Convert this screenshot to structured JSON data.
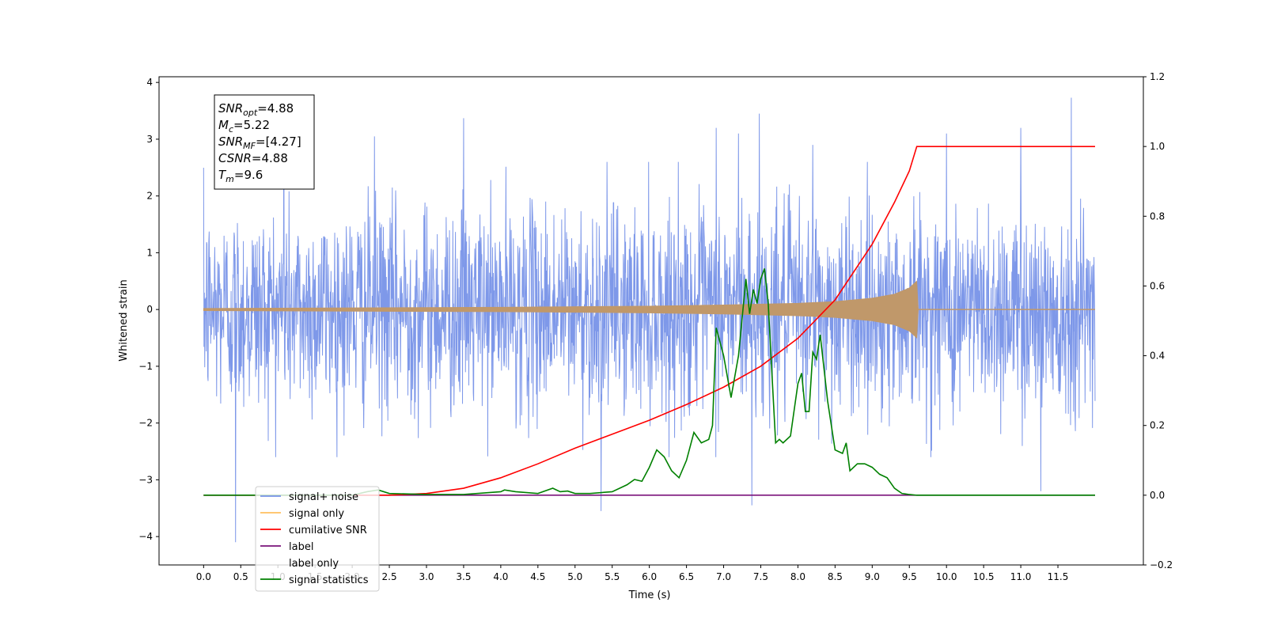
{
  "chart_data": {
    "type": "line",
    "xlabel": "Time (s)",
    "ylabel": "Whitened strain",
    "xlim": [
      -0.6,
      12.65
    ],
    "ylim_left": [
      -4.5,
      4.1
    ],
    "ylim_right": [
      -0.2,
      1.2
    ],
    "x_ticks": [
      "0.0",
      "0.5",
      "1.0",
      "1.5",
      "2.0",
      "2.5",
      "3.0",
      "3.5",
      "4.0",
      "4.5",
      "5.0",
      "5.5",
      "6.0",
      "6.5",
      "7.0",
      "7.5",
      "8.0",
      "8.5",
      "9.0",
      "9.5",
      "10.0",
      "10.5",
      "11.0",
      "11.5"
    ],
    "y_ticks_left": [
      -4,
      -3,
      -2,
      -1,
      0,
      1,
      2,
      3,
      4
    ],
    "y_ticks_right": [
      "−0.2",
      "0.0",
      "0.2",
      "0.4",
      "0.6",
      "0.8",
      "1.0",
      "1.2"
    ],
    "signal_duration": [
      0,
      12.0
    ],
    "merger_time": 9.6,
    "series": [
      {
        "name": "signal+ noise",
        "color": "#7792e8",
        "axis": "left",
        "description_values": {
          "mean": 0,
          "std_approx": 0.9,
          "peaks": [
            [
              0.43,
              -4.1
            ],
            [
              1.08,
              3.25
            ],
            [
              2.3,
              3.05
            ],
            [
              3.5,
              3.37
            ],
            [
              5.35,
              -3.55
            ],
            [
              6.9,
              3.2
            ],
            [
              7.2,
              3.1
            ],
            [
              7.48,
              3.45
            ],
            [
              7.38,
              -3.45
            ],
            [
              8.2,
              2.9
            ],
            [
              10.0,
              3.1
            ],
            [
              11.0,
              3.2
            ],
            [
              11.27,
              -3.2
            ],
            [
              11.68,
              3.73
            ]
          ]
        }
      },
      {
        "name": "signal only",
        "color": "#c0986a",
        "axis": "left",
        "envelope": [
          [
            0,
            0.02
          ],
          [
            2,
            0.03
          ],
          [
            4,
            0.04
          ],
          [
            6,
            0.06
          ],
          [
            7,
            0.08
          ],
          [
            8,
            0.11
          ],
          [
            8.5,
            0.14
          ],
          [
            9.0,
            0.2
          ],
          [
            9.3,
            0.27
          ],
          [
            9.5,
            0.38
          ],
          [
            9.6,
            0.5
          ],
          [
            9.62,
            0
          ]
        ]
      },
      {
        "name": "cumilative SNR",
        "color": "#ff0000",
        "axis": "right",
        "x": [
          0,
          2.5,
          3.0,
          3.5,
          4.0,
          4.5,
          5.0,
          5.5,
          6.0,
          6.5,
          7.0,
          7.5,
          8.0,
          8.5,
          9.0,
          9.3,
          9.5,
          9.6,
          10.0,
          11.0,
          12.0
        ],
        "y": [
          0.0,
          0.0,
          0.005,
          0.02,
          0.05,
          0.09,
          0.135,
          0.175,
          0.215,
          0.26,
          0.31,
          0.37,
          0.45,
          0.56,
          0.72,
          0.84,
          0.93,
          1.0,
          1.0,
          1.0,
          1.0
        ]
      },
      {
        "name": "label",
        "color": "#7a137a",
        "axis": "right",
        "x": [
          0,
          12.0
        ],
        "y": [
          0.0,
          0.0
        ]
      },
      {
        "name": "label only",
        "color": "#dddddd",
        "axis": "right",
        "x": [],
        "y": []
      },
      {
        "name": "signal statistics",
        "color": "#008000",
        "axis": "right",
        "x": [
          0,
          2.0,
          2.2,
          2.35,
          2.5,
          3.0,
          3.5,
          4.0,
          4.05,
          4.2,
          4.5,
          4.7,
          4.75,
          4.8,
          4.9,
          5.0,
          5.2,
          5.5,
          5.7,
          5.8,
          5.9,
          6.0,
          6.1,
          6.2,
          6.3,
          6.4,
          6.5,
          6.6,
          6.7,
          6.8,
          6.85,
          6.9,
          7.0,
          7.1,
          7.2,
          7.3,
          7.35,
          7.4,
          7.45,
          7.5,
          7.55,
          7.6,
          7.7,
          7.75,
          7.8,
          7.9,
          8.0,
          8.05,
          8.1,
          8.15,
          8.2,
          8.25,
          8.3,
          8.4,
          8.5,
          8.6,
          8.65,
          8.7,
          8.8,
          8.9,
          9.0,
          9.1,
          9.2,
          9.3,
          9.4,
          9.5,
          9.6,
          10.0,
          11.0,
          12.0
        ],
        "y": [
          0.0,
          0.0,
          0.01,
          0.015,
          0.005,
          0.002,
          0.002,
          0.01,
          0.015,
          0.01,
          0.005,
          0.02,
          0.015,
          0.01,
          0.012,
          0.005,
          0.005,
          0.01,
          0.03,
          0.045,
          0.04,
          0.08,
          0.13,
          0.11,
          0.07,
          0.05,
          0.1,
          0.18,
          0.15,
          0.16,
          0.2,
          0.48,
          0.4,
          0.28,
          0.4,
          0.62,
          0.52,
          0.59,
          0.55,
          0.62,
          0.65,
          0.55,
          0.15,
          0.16,
          0.15,
          0.17,
          0.32,
          0.35,
          0.24,
          0.24,
          0.41,
          0.39,
          0.46,
          0.27,
          0.13,
          0.12,
          0.15,
          0.07,
          0.09,
          0.09,
          0.08,
          0.06,
          0.05,
          0.02,
          0.005,
          0.002,
          0.0,
          0.0,
          0.0,
          0.0
        ]
      }
    ],
    "legend_placement": "lower-left",
    "annotation_box": {
      "placement": "upper-left",
      "lines": [
        {
          "main": "SNR",
          "sub": "opt",
          "value": "=4.88"
        },
        {
          "main": "M",
          "sub": "c",
          "value": "=5.22"
        },
        {
          "main": "SNR",
          "sub": "MF",
          "value": "=[4.27]"
        },
        {
          "main": "CSNR",
          "sub": "",
          "value": "=4.88"
        },
        {
          "main": "T",
          "sub": "m",
          "value": "=9.6"
        }
      ]
    }
  }
}
